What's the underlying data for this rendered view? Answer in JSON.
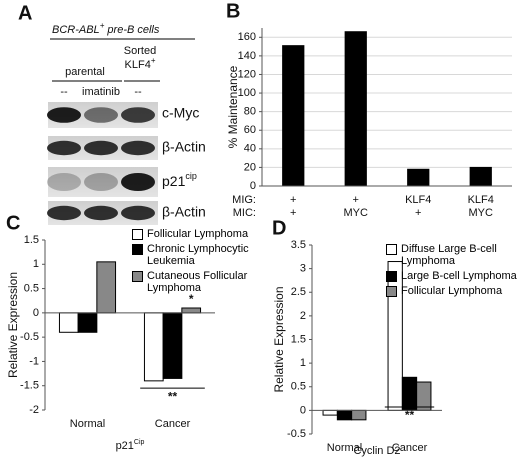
{
  "blot": {
    "panel_label": "A",
    "header": {
      "text": "BCR-ABL",
      "sup": "+",
      "rest": " pre-B cells"
    },
    "group_label": "parental",
    "sorted_label": {
      "lines": [
        "Sorted",
        "KLF4"
      ],
      "sup": "+"
    },
    "lanes": [
      "--",
      "imatinib",
      "--"
    ],
    "rows": [
      {
        "text": "c-Myc"
      },
      {
        "text": "β-Actin"
      },
      {
        "text": "p21",
        "sup": "cip"
      },
      {
        "text": "β-Actin"
      }
    ]
  },
  "chart_data": [
    {
      "type": "bar",
      "panel_label": "B",
      "ylabel": "% Maintenance",
      "category_row_labels": [
        "MIG:",
        "MIC:"
      ],
      "categories": [
        [
          "+",
          "+"
        ],
        [
          "+",
          "MYC"
        ],
        [
          "KLF4",
          "+"
        ],
        [
          "KLF4",
          "MYC"
        ]
      ],
      "values": [
        151,
        166,
        18,
        20
      ],
      "color": "#000000",
      "ylim": [
        0,
        170
      ],
      "yticks": [
        0,
        20,
        40,
        60,
        80,
        100,
        120,
        140,
        160
      ],
      "grid": true
    },
    {
      "type": "bar",
      "panel_label": "C",
      "ylabel": "Relative Expression",
      "xlabel": "p21",
      "xlabel_sup": "Cip",
      "categories": [
        "Normal",
        "Cancer"
      ],
      "series": [
        {
          "name": "Follicular Lymphoma",
          "color": "#ffffff",
          "values": [
            -0.4,
            -1.4
          ]
        },
        {
          "name": "Chronic Lymphocytic Leukemia",
          "color": "#000000",
          "values": [
            -0.4,
            -1.35
          ]
        },
        {
          "name": "Cutaneous Follicular Lymphoma",
          "color": "#888888",
          "values": [
            1.05,
            0.1
          ]
        }
      ],
      "annotations": [
        "**",
        "*"
      ],
      "ylim": [
        -2,
        1.5
      ],
      "yticks": [
        -2,
        -1.5,
        -1,
        -0.5,
        0,
        0.5,
        1,
        1.5
      ],
      "grid": false
    },
    {
      "type": "bar",
      "panel_label": "D",
      "ylabel": "Relative Expression",
      "xlabel": "Cyclin D2",
      "categories": [
        "Normal",
        "Cancer"
      ],
      "series": [
        {
          "name": "Diffuse Large B-cell Lymphoma",
          "color": "#ffffff",
          "values": [
            -0.1,
            3.15
          ]
        },
        {
          "name": "Large B-cell Lymphoma",
          "color": "#000000",
          "values": [
            -0.2,
            0.7
          ]
        },
        {
          "name": "Follicular Lymphoma",
          "color": "#888888",
          "values": [
            -0.2,
            0.6
          ]
        }
      ],
      "annotations": [
        "**"
      ],
      "ylim": [
        -0.5,
        3.5
      ],
      "yticks": [
        -0.5,
        0,
        0.5,
        1,
        1.5,
        2,
        2.5,
        3,
        3.5
      ],
      "grid": false
    }
  ]
}
